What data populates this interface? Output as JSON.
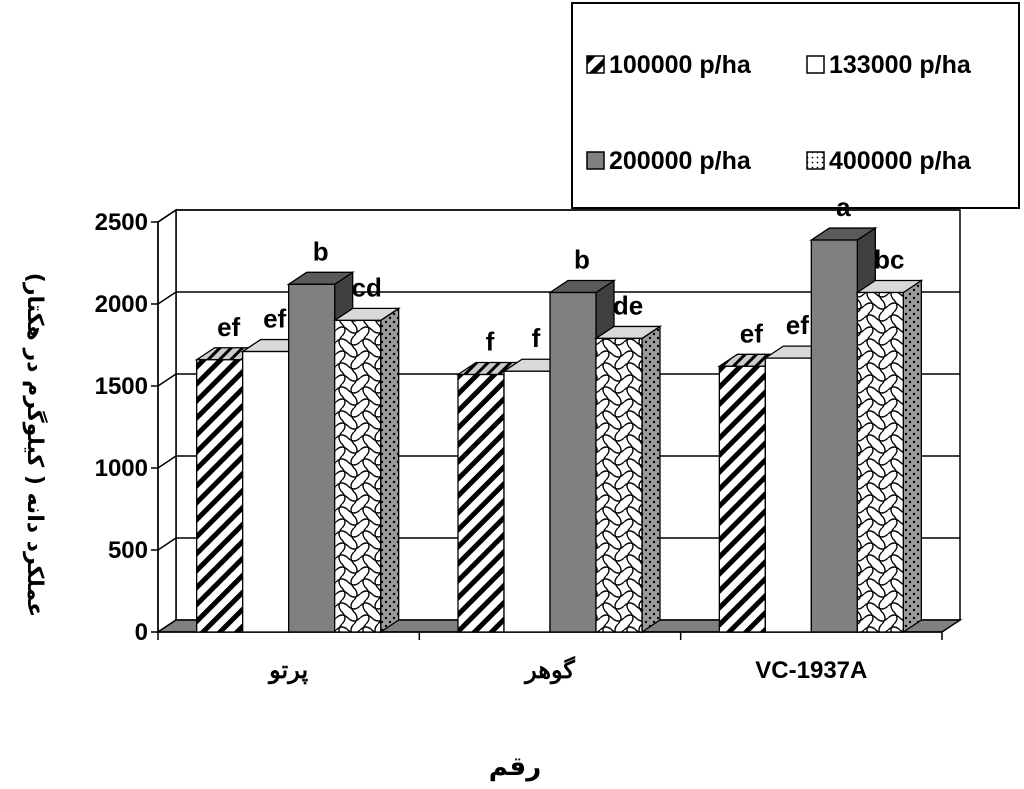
{
  "chart_data": {
    "type": "bar",
    "categories": [
      "پرتو",
      "گوهر",
      "VC-1937A"
    ],
    "series": [
      {
        "name": "100000 p/ha",
        "values": [
          1660,
          1570,
          1620
        ],
        "letters": [
          "ef",
          "f",
          "ef"
        ]
      },
      {
        "name": "133000 p/ha",
        "values": [
          1710,
          1590,
          1670
        ],
        "letters": [
          "ef",
          "f",
          "ef"
        ]
      },
      {
        "name": "200000 p/ha",
        "values": [
          2120,
          2070,
          2390
        ],
        "letters": [
          "b",
          "b",
          "a"
        ]
      },
      {
        "name": "400000 p/ha",
        "values": [
          1900,
          1790,
          2070
        ],
        "letters": [
          "cd",
          "de",
          "bc"
        ]
      }
    ],
    "yticks": [
      0,
      500,
      1000,
      1500,
      2000,
      2500
    ],
    "ylim": [
      0,
      2500
    ],
    "xlabel": "رقم",
    "ylabel": "عملكرد دانه ( كيلوگرم در هكتار)",
    "legend_position": "top-right",
    "grid": true,
    "colors": {
      "series_100000": "#ffffff",
      "series_133000": "#ffffff",
      "series_200000": "#808080",
      "series_400000": "#ffffff",
      "floor": "#808080",
      "gridline": "#000000"
    },
    "patterns": [
      "diagonal-hatch",
      "solid-white",
      "solid-gray",
      "wave-crosshatch"
    ]
  }
}
